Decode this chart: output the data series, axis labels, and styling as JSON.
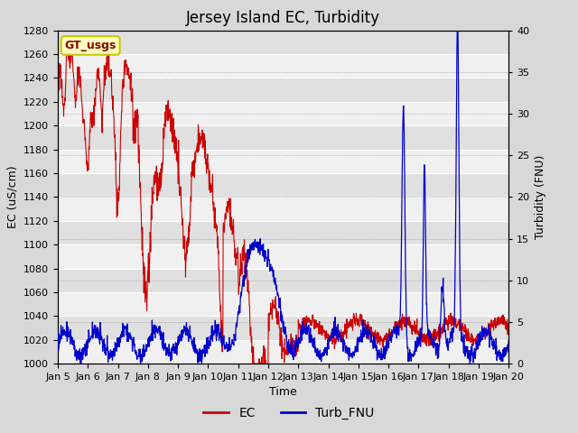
{
  "title": "Jersey Island EC, Turbidity",
  "xlabel": "Time",
  "ylabel_left": "EC (uS/cm)",
  "ylabel_right": "Turbidity (FNU)",
  "ylim_left": [
    1000,
    1280
  ],
  "ylim_right": [
    0,
    40
  ],
  "yticks_left": [
    1000,
    1020,
    1040,
    1060,
    1080,
    1100,
    1120,
    1140,
    1160,
    1180,
    1200,
    1220,
    1240,
    1260,
    1280
  ],
  "yticks_right": [
    0,
    5,
    10,
    15,
    20,
    25,
    30,
    35,
    40
  ],
  "background_color": "#d8d8d8",
  "plot_bg_light": "#f0f0f0",
  "plot_bg_dark": "#e0e0e0",
  "ec_color": "#cc0000",
  "turb_color": "#0000cc",
  "annotation_text": "GT_usgs",
  "annotation_bg": "#ffffc0",
  "annotation_border": "#c8c800",
  "legend_ec": "EC",
  "legend_turb": "Turb_FNU",
  "title_fontsize": 12,
  "axis_fontsize": 9,
  "tick_fontsize": 8,
  "legend_fontsize": 10,
  "xtick_labels": [
    "Jan 5",
    "Jan 6",
    "Jan 7",
    "Jan 8",
    "Jan 9",
    "Jan 10",
    "Jan 11",
    "Jan 12",
    "Jan 13",
    "Jan 14",
    "Jan 15",
    "Jan 16",
    "Jan 17",
    "Jan 18",
    "Jan 19",
    "Jan 20"
  ]
}
